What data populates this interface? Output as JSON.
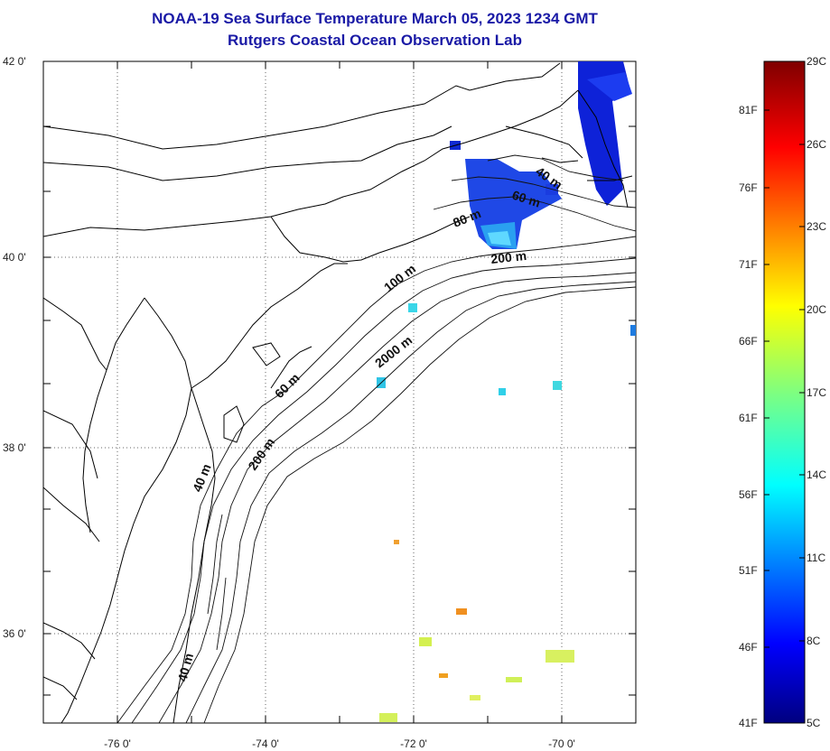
{
  "title": {
    "line1": "NOAA-19 Sea Surface Temperature March 05, 2023 1234 GMT",
    "line2": "Rutgers Coastal Ocean Observation Lab"
  },
  "colors": {
    "title": "#1a1aa6",
    "coast": "#000000",
    "grid": "#555555"
  },
  "map": {
    "lon_ticks": [
      "-76 0'",
      "-74 0'",
      "-72 0'",
      "-70 0'"
    ],
    "lat_ticks": [
      "42 0'",
      "40 0'",
      "38 0'",
      "36 0'"
    ],
    "contour_labels": [
      "40 m",
      "60 m",
      "80 m",
      "200 m",
      "100 m",
      "2000 m",
      "60 m",
      "40 m",
      "200 m",
      "40 m"
    ]
  },
  "colorbar": {
    "fahrenheit_labels": [
      "81F",
      "76F",
      "71F",
      "66F",
      "61F",
      "56F",
      "51F",
      "46F",
      "41F"
    ],
    "celsius_labels": [
      "29C",
      "26C",
      "23C",
      "20C",
      "17C",
      "14C",
      "11C",
      "8C",
      "5C"
    ],
    "min_c": 5,
    "max_c": 29
  }
}
